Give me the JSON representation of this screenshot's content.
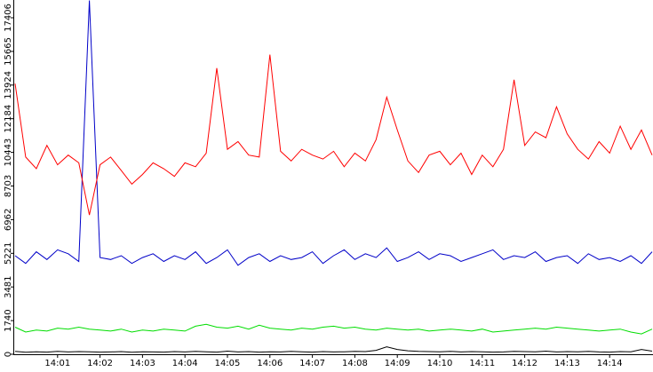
{
  "chart_data": {
    "type": "line",
    "categories": [
      null,
      null,
      null,
      null,
      "14:01",
      null,
      null,
      null,
      "14:02",
      null,
      null,
      null,
      "14:03",
      null,
      null,
      null,
      "14:04",
      null,
      null,
      null,
      "14:05",
      null,
      null,
      null,
      "14:06",
      null,
      null,
      null,
      "14:07",
      null,
      null,
      null,
      "14:08",
      null,
      null,
      null,
      "14:09",
      null,
      null,
      null,
      "14:10",
      null,
      null,
      null,
      "14:11",
      null,
      null,
      null,
      "14:12",
      null,
      null,
      null,
      "14:13",
      null,
      null,
      null,
      "14:14",
      null,
      null,
      null,
      null
    ],
    "series": [
      {
        "color": "#ff0000",
        "values": [
          14000,
          10200,
          9600,
          10800,
          9800,
          10300,
          9900,
          7200,
          9800,
          10200,
          9500,
          8800,
          9300,
          9900,
          9600,
          9200,
          9900,
          9700,
          10400,
          14800,
          10600,
          11000,
          10300,
          10200,
          15500,
          10500,
          10000,
          10600,
          10300,
          10100,
          10500,
          9700,
          10400,
          10000,
          11100,
          13300,
          11600,
          10000,
          9400,
          10300,
          10500,
          9800,
          10400,
          9300,
          10300,
          9700,
          10600,
          14200,
          10800,
          11500,
          11200,
          12800,
          11400,
          10600,
          10100,
          11000,
          10400,
          11800,
          10600,
          11600,
          10300
        ]
      },
      {
        "color": "#0000c8",
        "values": [
          5100,
          4700,
          5300,
          4900,
          5400,
          5200,
          4800,
          18300,
          5000,
          4900,
          5100,
          4700,
          5000,
          5200,
          4800,
          5100,
          4900,
          5300,
          4700,
          5000,
          5400,
          4600,
          5000,
          5200,
          4800,
          5100,
          4900,
          5000,
          5300,
          4700,
          5100,
          5400,
          4900,
          5200,
          5000,
          5500,
          4800,
          5000,
          5300,
          4900,
          5200,
          5100,
          4800,
          5000,
          5200,
          5400,
          4900,
          5100,
          5000,
          5300,
          4800,
          5000,
          5100,
          4700,
          5200,
          4900,
          5000,
          4800,
          5100,
          4700,
          5300
        ]
      },
      {
        "color": "#00dd00",
        "values": [
          1400,
          1150,
          1250,
          1200,
          1350,
          1300,
          1400,
          1300,
          1250,
          1200,
          1300,
          1150,
          1250,
          1200,
          1300,
          1250,
          1200,
          1450,
          1550,
          1400,
          1350,
          1450,
          1300,
          1500,
          1350,
          1300,
          1250,
          1350,
          1300,
          1400,
          1450,
          1350,
          1400,
          1300,
          1250,
          1350,
          1300,
          1250,
          1300,
          1200,
          1250,
          1300,
          1250,
          1200,
          1300,
          1150,
          1200,
          1250,
          1300,
          1350,
          1300,
          1400,
          1350,
          1300,
          1250,
          1200,
          1250,
          1300,
          1150,
          1050,
          1300
        ]
      },
      {
        "color": "#000000",
        "values": [
          150,
          100,
          130,
          110,
          150,
          120,
          140,
          130,
          110,
          120,
          140,
          100,
          130,
          120,
          110,
          140,
          120,
          150,
          130,
          110,
          160,
          120,
          140,
          110,
          130,
          120,
          150,
          130,
          110,
          140,
          120,
          130,
          150,
          140,
          200,
          380,
          250,
          180,
          150,
          140,
          130,
          150,
          120,
          140,
          130,
          110,
          120,
          150,
          140,
          130,
          160,
          120,
          140,
          130,
          150,
          120,
          110,
          140,
          130,
          250,
          160
        ]
      }
    ],
    "ylim": [
      0,
      17406
    ],
    "yticks": [
      0,
      1740,
      3481,
      5221,
      6962,
      8703,
      10443,
      12184,
      13924,
      15665,
      17406
    ]
  }
}
